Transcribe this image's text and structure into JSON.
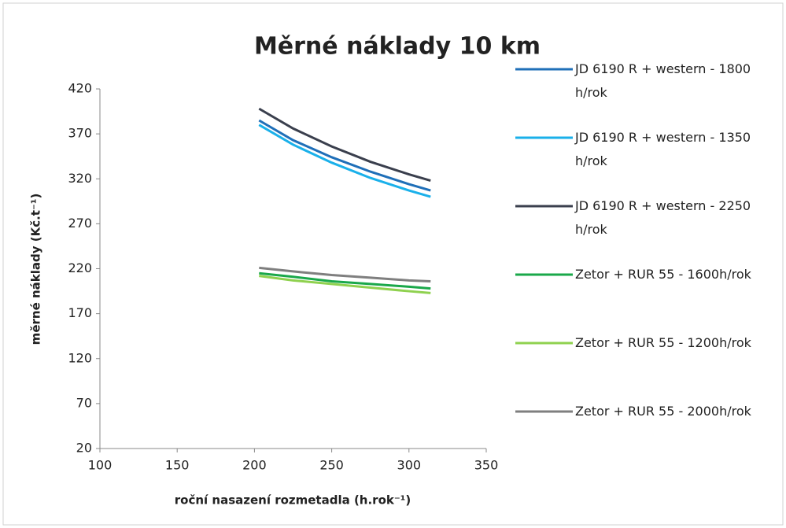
{
  "chart_data": {
    "type": "line",
    "title": "Měrné náklady 10 km",
    "x_label": "roční nasazení rozmetadla (h.rok⁻¹)",
    "y_label": "měrné náklady (Kč.t⁻¹)",
    "x": [
      203,
      225,
      250,
      275,
      300,
      314
    ],
    "xlim": [
      100,
      350
    ],
    "xticks": [
      100,
      150,
      200,
      250,
      300,
      350
    ],
    "ylim": [
      20,
      420
    ],
    "yticks": [
      20,
      70,
      120,
      170,
      220,
      270,
      320,
      370,
      420
    ],
    "grid": false,
    "legend": "right",
    "series": [
      {
        "name": "JD 6190 R + western - 1800 h/rok",
        "color": "#1f6fb8",
        "values": [
          385,
          363,
          344,
          328,
          314,
          307
        ]
      },
      {
        "name": "JD 6190 R + western - 1350 h/rok",
        "color": "#1ab0ea",
        "values": [
          380,
          358,
          338,
          321,
          307,
          300
        ]
      },
      {
        "name": "JD 6190 R + western - 2250 h/rok",
        "color": "#3a3f4d",
        "values": [
          398,
          376,
          356,
          339,
          325,
          318
        ]
      },
      {
        "name": "Zetor + RUR 55 - 1600h/rok",
        "color": "#1aa84a",
        "values": [
          215,
          211,
          206,
          203,
          200,
          198
        ]
      },
      {
        "name": "Zetor + RUR 55 - 1200h/rok",
        "color": "#8fd14f",
        "values": [
          212,
          207,
          203,
          199,
          195,
          193
        ]
      },
      {
        "name": "Zetor + RUR 55 - 2000h/rok",
        "color": "#7f7f7f",
        "values": [
          221,
          217,
          213,
          210,
          207,
          206
        ]
      }
    ]
  }
}
